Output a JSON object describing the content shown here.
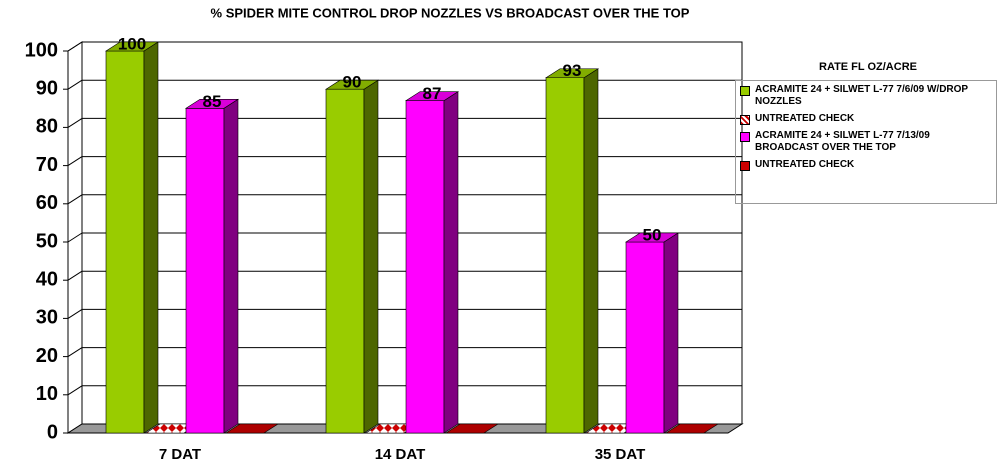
{
  "chart_data": {
    "type": "bar3d",
    "title": "% SPIDER MITE CONTROL   DROP NOZZLES VS BROADCAST OVER THE TOP",
    "categories": [
      "7 DAT",
      "14 DAT",
      "35 DAT"
    ],
    "series": [
      {
        "name": "ACRAMITE 24 + SILWET L-77 7/6/09 W/DROP NOZZLES",
        "color": "#99cc00",
        "values": [
          100,
          90,
          93
        ],
        "labels": true
      },
      {
        "name": "UNTREATED CHECK",
        "color": "#cc0000",
        "pattern": "checker",
        "values": [
          0,
          0,
          0
        ],
        "labels": false
      },
      {
        "name": "ACRAMITE 24 + SILWET L-77 7/13/09 BROADCAST OVER THE TOP",
        "color": "#ff00ff",
        "values": [
          85,
          87,
          50
        ],
        "labels": true
      },
      {
        "name": "UNTREATED CHECK",
        "color": "#cc0000",
        "values": [
          0,
          0,
          0
        ],
        "labels": false
      }
    ],
    "legend_title": "RATE FL OZ/ACRE",
    "ylim": [
      0,
      100
    ],
    "yticks": [
      0,
      10,
      20,
      30,
      40,
      50,
      60,
      70,
      80,
      90,
      100
    ],
    "grid": true,
    "legend": "right"
  }
}
